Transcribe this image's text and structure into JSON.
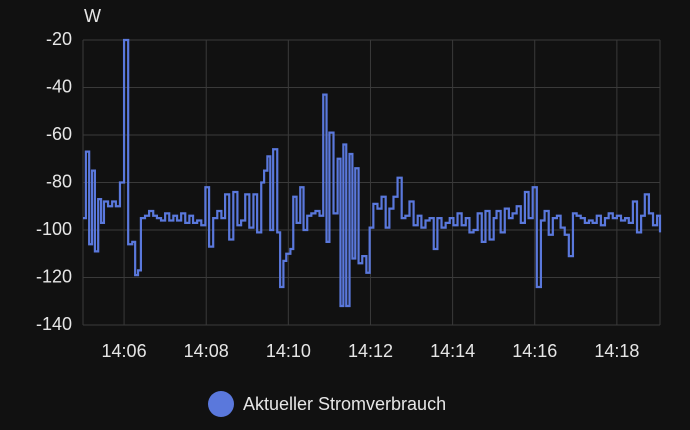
{
  "chart_data": {
    "type": "line",
    "step": true,
    "y_label": "W",
    "xlim": [
      845,
      859.05
    ],
    "ylim": [
      -140,
      -20
    ],
    "yticks": [
      -140,
      -120,
      -100,
      -80,
      -60,
      -40,
      -20
    ],
    "xticks": [
      {
        "value": 846,
        "label": "14:06"
      },
      {
        "value": 848,
        "label": "14:08"
      },
      {
        "value": 850,
        "label": "14:10"
      },
      {
        "value": 852,
        "label": "14:12"
      },
      {
        "value": 854,
        "label": "14:14"
      },
      {
        "value": 856,
        "label": "14:16"
      },
      {
        "value": 858,
        "label": "14:18"
      }
    ],
    "grid": true,
    "legend": "bottom",
    "x": [
      845.0,
      845.07,
      845.15,
      845.22,
      845.29,
      845.37,
      845.44,
      845.51,
      845.61,
      845.71,
      845.8,
      845.9,
      846.0,
      846.1,
      846.2,
      846.27,
      846.34,
      846.41,
      846.51,
      846.61,
      846.71,
      846.8,
      846.9,
      847.0,
      847.1,
      847.2,
      847.29,
      847.39,
      847.49,
      847.59,
      847.68,
      847.78,
      847.88,
      847.98,
      848.07,
      848.17,
      848.27,
      848.37,
      848.46,
      848.56,
      848.66,
      848.76,
      848.85,
      848.95,
      849.05,
      849.15,
      849.24,
      849.34,
      849.41,
      849.49,
      849.56,
      849.63,
      849.73,
      849.8,
      849.88,
      849.95,
      850.05,
      850.12,
      850.2,
      850.29,
      850.37,
      850.46,
      850.56,
      850.66,
      850.76,
      850.85,
      850.93,
      851.0,
      851.1,
      851.2,
      851.27,
      851.34,
      851.41,
      851.49,
      851.56,
      851.63,
      851.71,
      851.8,
      851.9,
      851.98,
      852.07,
      852.17,
      852.27,
      852.37,
      852.46,
      852.56,
      852.66,
      852.76,
      852.85,
      852.95,
      853.05,
      853.15,
      853.24,
      853.34,
      853.44,
      853.54,
      853.63,
      853.73,
      853.83,
      853.93,
      854.02,
      854.12,
      854.22,
      854.32,
      854.41,
      854.51,
      854.61,
      854.71,
      854.8,
      854.9,
      855.0,
      855.07,
      855.17,
      855.27,
      855.37,
      855.46,
      855.56,
      855.66,
      855.76,
      855.85,
      855.95,
      856.05,
      856.15,
      856.24,
      856.34,
      856.44,
      856.54,
      856.63,
      856.73,
      856.83,
      856.93,
      857.02,
      857.12,
      857.22,
      857.32,
      857.41,
      857.51,
      857.61,
      857.71,
      857.8,
      857.9,
      858.0,
      858.1,
      858.2,
      858.29,
      858.39,
      858.49,
      858.59,
      858.68,
      858.78,
      858.88,
      858.98,
      859.05
    ],
    "series": [
      {
        "name": "Aktueller Stromverbrauch",
        "color": "#5a78dc",
        "values": [
          -95,
          -67,
          -106,
          -75,
          -109,
          -87,
          -97,
          -88,
          -90,
          -88,
          -90,
          -80,
          -20,
          -106,
          -105,
          -119,
          -117,
          -95,
          -94,
          -92,
          -94,
          -95,
          -96,
          -93,
          -96,
          -94,
          -96,
          -93,
          -97,
          -94,
          -97,
          -96,
          -98,
          -82,
          -107,
          -95,
          -92,
          -95,
          -85,
          -104,
          -84,
          -98,
          -96,
          -85,
          -99,
          -85,
          -101,
          -80,
          -75,
          -69,
          -100,
          -66,
          -101,
          -124,
          -113,
          -110,
          -108,
          -86,
          -97,
          -82,
          -100,
          -94,
          -93,
          -92,
          -94,
          -43,
          -105,
          -59,
          -93,
          -70,
          -132,
          -64,
          -132,
          -68,
          -112,
          -74,
          -114,
          -111,
          -118,
          -99,
          -89,
          -91,
          -86,
          -99,
          -91,
          -86,
          -78,
          -95,
          -94,
          -88,
          -98,
          -94,
          -99,
          -96,
          -95,
          -108,
          -95,
          -99,
          -97,
          -95,
          -98,
          -93,
          -98,
          -95,
          -101,
          -100,
          -93,
          -105,
          -92,
          -104,
          -95,
          -92,
          -101,
          -91,
          -95,
          -93,
          -90,
          -97,
          -84,
          -95,
          -82,
          -124,
          -96,
          -92,
          -102,
          -95,
          -94,
          -99,
          -102,
          -111,
          -93,
          -94,
          -95,
          -97,
          -96,
          -97,
          -94,
          -98,
          -95,
          -93,
          -95,
          -94,
          -96,
          -95,
          -97,
          -88,
          -101,
          -94,
          -85,
          -93,
          -98,
          -94,
          -101
        ]
      }
    ]
  }
}
